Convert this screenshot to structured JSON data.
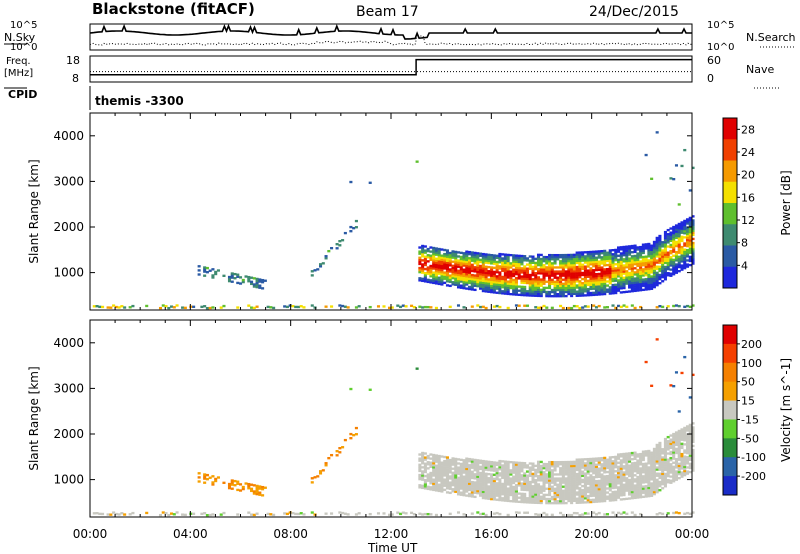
{
  "header": {
    "station": "Blackstone (fitACF)",
    "beam": "Beam 17",
    "date": "24/Dec/2015"
  },
  "panel_labels": {
    "nsky": "N.Sky",
    "nsearch": "N.Search",
    "freq_line1": "Freq.",
    "freq_line2": "[MHz]",
    "nave": "Nave",
    "cpid": "CPID",
    "cpid_value": "themis -3300",
    "noise_top": "10^5",
    "noise_bottom": "10^0",
    "freq_top": "18",
    "freq_bottom": "8",
    "nave_top": "60",
    "nave_bottom": "0"
  },
  "chart_data": [
    {
      "type": "line",
      "name": "noise",
      "series": [
        {
          "name": "N.Sky",
          "style": "solid"
        },
        {
          "name": "N.Search",
          "style": "dotted"
        }
      ]
    },
    {
      "type": "line",
      "name": "frequency",
      "series": [
        {
          "name": "Freq.",
          "style": "solid",
          "x": [
            "00:00",
            "13:00",
            "13:00",
            "24:00"
          ],
          "values": [
            10.8,
            10.8,
            16.6,
            16.6
          ]
        },
        {
          "name": "Nave",
          "style": "dotted",
          "x": [
            "00:00",
            "24:00"
          ],
          "values": [
            24,
            24
          ]
        }
      ]
    },
    {
      "type": "heatmap",
      "name": "power",
      "xlabel": "Time UT",
      "ylabel": "Slant Range [km]",
      "x_ticks": [
        "00:00",
        "04:00",
        "08:00",
        "12:00",
        "16:00",
        "20:00",
        "00:00"
      ],
      "xlim": [
        "00:00",
        "24:00"
      ],
      "y_ticks": [
        1000,
        2000,
        3000,
        4000
      ],
      "ylim": [
        180,
        4500
      ],
      "colorbar": {
        "label": "Power [dB]",
        "ticks": [
          4,
          8,
          12,
          16,
          20,
          24,
          28
        ],
        "range": [
          0,
          30
        ],
        "colors": [
          "#1e28dc",
          "#2a5aa4",
          "#3e8a70",
          "#5fbf2e",
          "#f4e000",
          "#f59a00",
          "#f04000",
          "#e00000"
        ]
      }
    },
    {
      "type": "heatmap",
      "name": "velocity",
      "xlabel": "Time UT",
      "ylabel": "Slant Range [km]",
      "x_ticks": [
        "00:00",
        "04:00",
        "08:00",
        "12:00",
        "16:00",
        "20:00",
        "00:00"
      ],
      "xlim": [
        "00:00",
        "24:00"
      ],
      "y_ticks": [
        1000,
        2000,
        3000,
        4000
      ],
      "ylim": [
        180,
        4500
      ],
      "colorbar": {
        "label": "Velocity [m s^-1]",
        "ticks": [
          200,
          100,
          50,
          15,
          -15,
          -50,
          -100,
          -200
        ],
        "colors": [
          "#1a2cc8",
          "#2a64a8",
          "#2a8c3a",
          "#5fcf2e",
          "#c8c8c0",
          "#f5a000",
          "#f58000",
          "#f54000",
          "#e00000"
        ]
      }
    }
  ]
}
